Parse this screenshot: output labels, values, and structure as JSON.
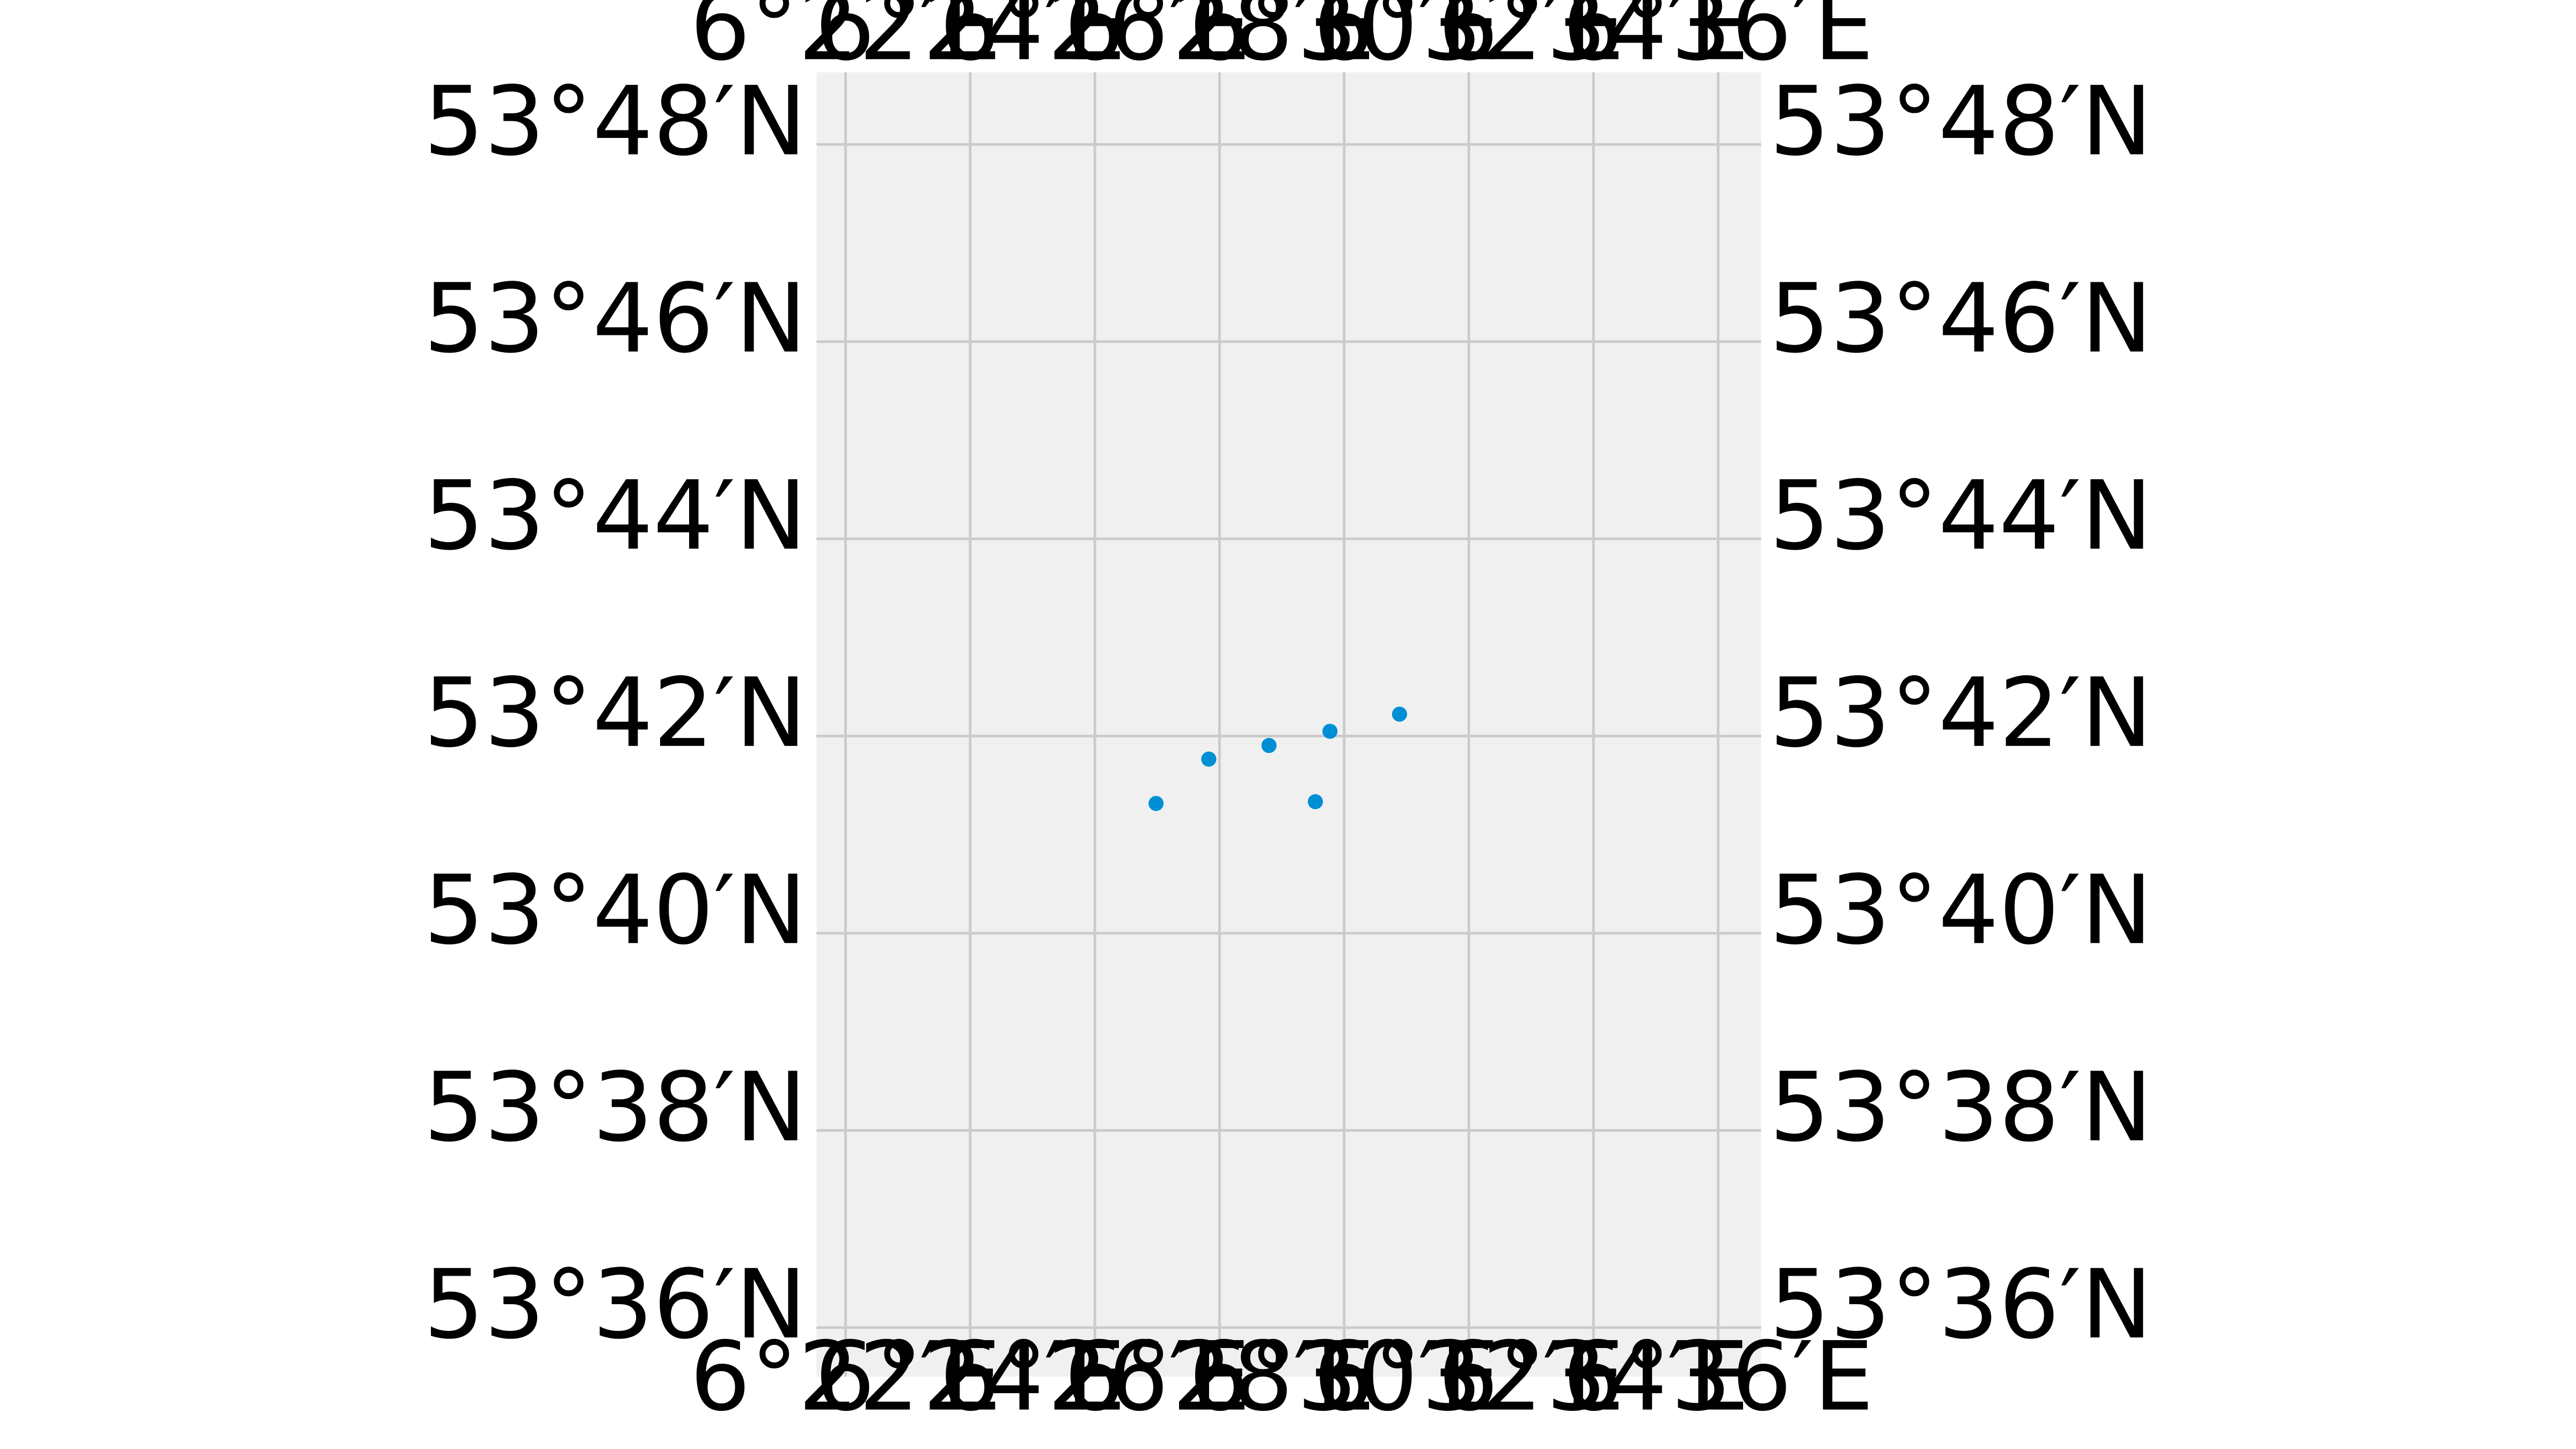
{
  "map": {
    "type": "scatter",
    "projection": "PlateCarree",
    "grid": true,
    "colors": {
      "background": "#f0f0f0",
      "gridline": "#cbcbcb",
      "point": "#008fd5"
    },
    "lon_range": [
      6.3589,
      6.6115
    ],
    "lat_range": [
      53.5917,
      53.8122
    ],
    "lon_ticks": [
      {
        "value": 6.366667,
        "label": "6°22′E"
      },
      {
        "value": 6.4,
        "label": "6°24′E"
      },
      {
        "value": 6.433333,
        "label": "6°26′E"
      },
      {
        "value": 6.466667,
        "label": "6°28′E"
      },
      {
        "value": 6.5,
        "label": "6°30′E"
      },
      {
        "value": 6.533333,
        "label": "6°32′E"
      },
      {
        "value": 6.566667,
        "label": "6°34′E"
      },
      {
        "value": 6.6,
        "label": "6°36′E"
      }
    ],
    "lat_ticks": [
      {
        "value": 53.6,
        "label": "53°36′N"
      },
      {
        "value": 53.633333,
        "label": "53°38′N"
      },
      {
        "value": 53.666667,
        "label": "53°40′N"
      },
      {
        "value": 53.7,
        "label": "53°42′N"
      },
      {
        "value": 53.733333,
        "label": "53°44′N"
      },
      {
        "value": 53.766667,
        "label": "53°46′N"
      },
      {
        "value": 53.8,
        "label": "53°48′N"
      }
    ],
    "points": [
      {
        "lon": 6.5148,
        "lat": 53.7037
      },
      {
        "lon": 6.4962,
        "lat": 53.7008
      },
      {
        "lon": 6.4799,
        "lat": 53.6984
      },
      {
        "lon": 6.4638,
        "lat": 53.6961
      },
      {
        "lon": 6.4497,
        "lat": 53.6886
      },
      {
        "lon": 6.4923,
        "lat": 53.6889
      }
    ]
  }
}
